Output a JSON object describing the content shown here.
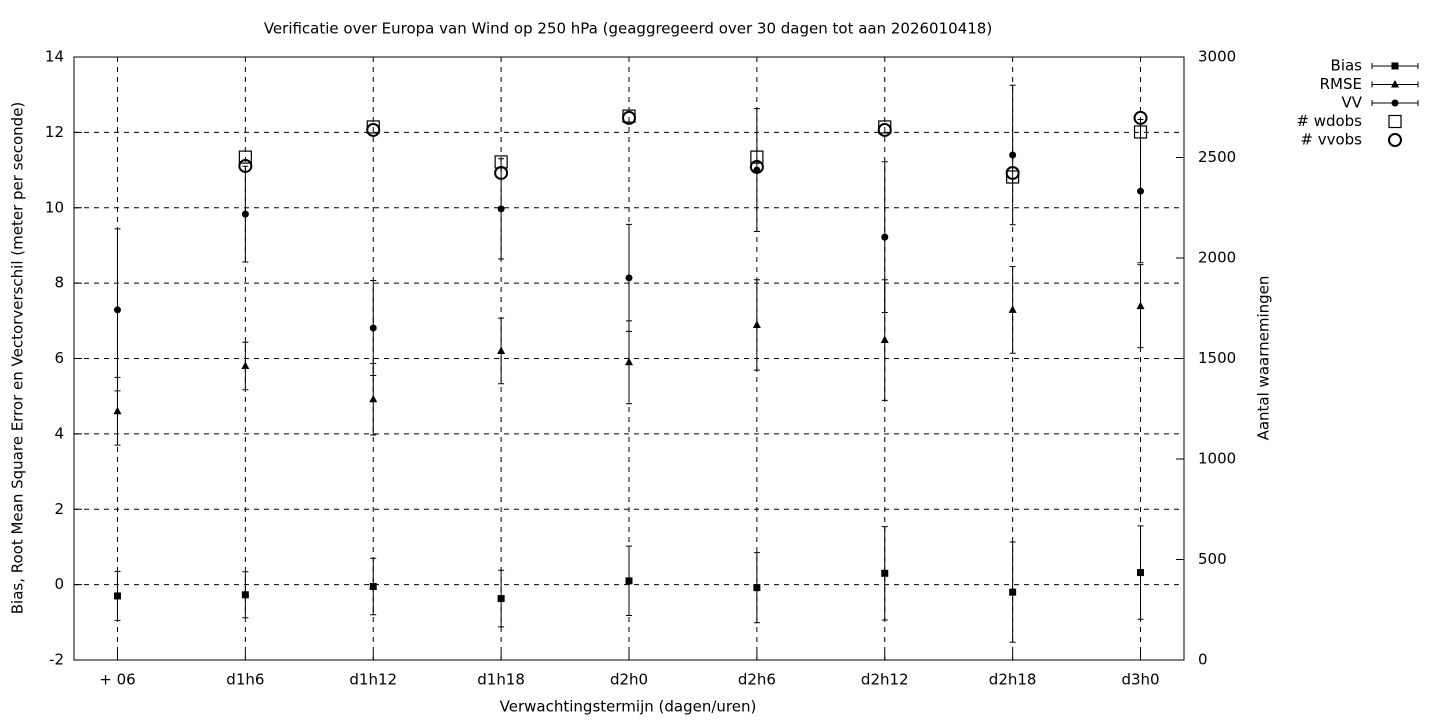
{
  "chart_data": {
    "type": "errorbar",
    "title": "Verificatie over Europa van Wind op 250 hPa (geaggregeerd over 30 dagen tot aan 2026010418)",
    "xlabel": "Verwachtingstermijn (dagen/uren)",
    "ylabel": "Bias, Root Mean Square Error en Vectorverschil (meter per seconde)",
    "y2label": "Aantal waarnemingen",
    "categories": [
      "+ 06",
      "d1h6",
      "d1h12",
      "d1h18",
      "d2h0",
      "d2h6",
      "d2h12",
      "d2h18",
      "d3h0"
    ],
    "ylim": [
      -2,
      14
    ],
    "yticks": [
      -2,
      0,
      2,
      4,
      6,
      8,
      10,
      12,
      14
    ],
    "y2lim": [
      0,
      3000
    ],
    "y2ticks": [
      0,
      500,
      1000,
      1500,
      2000,
      2500,
      3000
    ],
    "grid": true,
    "legend": "outside-top-right",
    "series": [
      {
        "name": "Bias",
        "color": "#000000",
        "marker": "filled-square",
        "values": [
          -0.3,
          -0.27,
          -0.05,
          -0.37,
          0.1,
          -0.08,
          0.3,
          -0.2,
          0.32
        ],
        "errors": [
          0.65,
          0.61,
          0.75,
          0.75,
          0.92,
          0.93,
          1.24,
          1.33,
          1.24
        ]
      },
      {
        "name": "RMSE",
        "color": "#000000",
        "marker": "filled-triangle",
        "values": [
          4.6,
          5.8,
          4.92,
          6.2,
          5.9,
          6.89,
          6.49,
          7.29,
          7.39
        ],
        "errors": [
          0.9,
          0.63,
          0.95,
          0.87,
          1.1,
          1.2,
          1.6,
          1.15,
          1.1
        ]
      },
      {
        "name": "VV",
        "color": "#000000",
        "marker": "filled-circle",
        "values": [
          7.29,
          9.83,
          6.81,
          9.97,
          8.14,
          11.0,
          9.22,
          11.4,
          10.44
        ],
        "errors": [
          2.15,
          1.27,
          1.26,
          1.33,
          1.42,
          1.63,
          2.0,
          1.85,
          1.9
        ]
      },
      {
        "name": "# wdobs",
        "color": "#000000",
        "marker": "open-square",
        "axis": "y2",
        "values": [
          null,
          2502,
          2652,
          2478,
          2706,
          2502,
          2652,
          2403,
          2627
        ]
      },
      {
        "name": "# vvobs",
        "color": "#000000",
        "marker": "open-circle",
        "axis": "y2",
        "values": [
          null,
          2458,
          2637,
          2423,
          2697,
          2453,
          2637,
          2423,
          2697
        ]
      }
    ]
  }
}
